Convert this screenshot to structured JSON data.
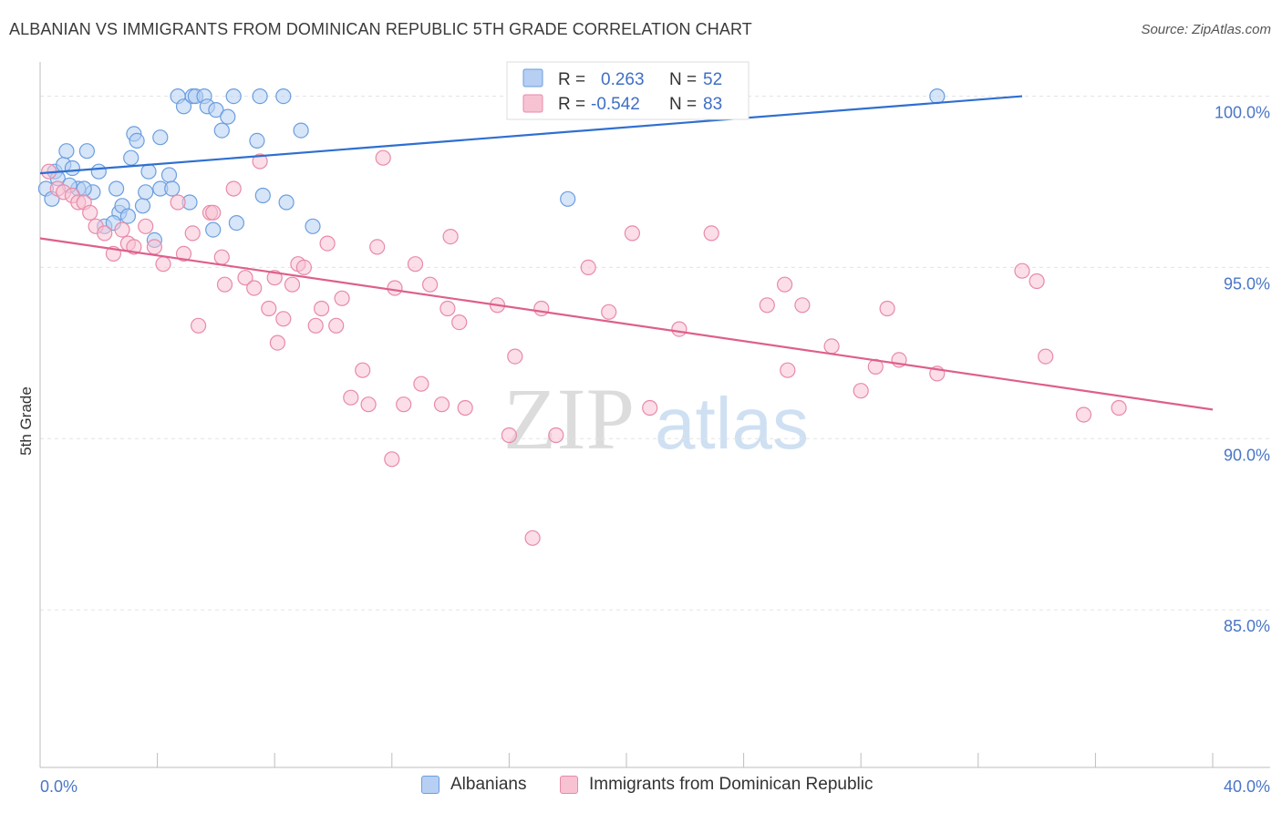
{
  "header": {
    "title": "ALBANIAN VS IMMIGRANTS FROM DOMINICAN REPUBLIC 5TH GRADE CORRELATION CHART",
    "source": "Source: ZipAtlas.com"
  },
  "watermark": {
    "zip": "ZIP",
    "atlas": "atlas"
  },
  "legend_top": {
    "rows": [
      {
        "r_label": "R =",
        "r_value": "0.263",
        "n_label": "N =",
        "n_value": "52"
      },
      {
        "r_label": "R =",
        "r_value": "-0.542",
        "n_label": "N =",
        "n_value": "83"
      }
    ]
  },
  "chart_data": {
    "type": "scatter",
    "ylabel": "5th Grade",
    "xlim": [
      0,
      40
    ],
    "ylim": [
      80.4,
      101.0
    ],
    "x_tick_labels": [
      "0.0%",
      "40.0%"
    ],
    "y_ticks": [
      {
        "value": 100,
        "label": "100.0%"
      },
      {
        "value": 95,
        "label": "95.0%"
      },
      {
        "value": 90,
        "label": "90.0%"
      },
      {
        "value": 85,
        "label": "85.0%"
      }
    ],
    "grid": "horizontal dashed",
    "series": [
      {
        "name": "Albanians",
        "color": "#6a9ee0",
        "fill": "#b7cff2",
        "trend": {
          "x0": 0,
          "y0": 97.75,
          "x1": 33.5,
          "y1": 100.0,
          "color": "#2f6fd0"
        },
        "points": [
          [
            0.2,
            97.3
          ],
          [
            0.5,
            97.8
          ],
          [
            0.8,
            98.0
          ],
          [
            0.9,
            98.4
          ],
          [
            1.1,
            97.9
          ],
          [
            1.3,
            97.3
          ],
          [
            1.6,
            98.4
          ],
          [
            1.8,
            97.2
          ],
          [
            2.0,
            97.8
          ],
          [
            2.2,
            96.2
          ],
          [
            2.6,
            97.3
          ],
          [
            2.7,
            96.6
          ],
          [
            2.8,
            96.8
          ],
          [
            3.1,
            98.2
          ],
          [
            3.2,
            98.9
          ],
          [
            3.3,
            98.7
          ],
          [
            3.5,
            96.8
          ],
          [
            3.6,
            97.2
          ],
          [
            3.7,
            97.8
          ],
          [
            3.9,
            95.8
          ],
          [
            4.1,
            97.3
          ],
          [
            4.1,
            98.8
          ],
          [
            4.4,
            97.7
          ],
          [
            4.5,
            97.3
          ],
          [
            4.7,
            100.0
          ],
          [
            4.9,
            99.7
          ],
          [
            5.1,
            96.9
          ],
          [
            5.2,
            100.0
          ],
          [
            5.3,
            100.0
          ],
          [
            5.6,
            100.0
          ],
          [
            5.7,
            99.7
          ],
          [
            5.9,
            96.1
          ],
          [
            6.0,
            99.6
          ],
          [
            6.2,
            99.0
          ],
          [
            6.4,
            99.4
          ],
          [
            6.6,
            100.0
          ],
          [
            6.7,
            96.3
          ],
          [
            7.4,
            98.7
          ],
          [
            7.5,
            100.0
          ],
          [
            7.6,
            97.1
          ],
          [
            8.3,
            100.0
          ],
          [
            8.4,
            96.9
          ],
          [
            8.9,
            99.0
          ],
          [
            9.3,
            96.2
          ],
          [
            18.0,
            97.0
          ],
          [
            30.6,
            100.0
          ],
          [
            0.4,
            97.0
          ],
          [
            0.6,
            97.6
          ],
          [
            1.5,
            97.3
          ],
          [
            2.5,
            96.3
          ],
          [
            3.0,
            96.5
          ],
          [
            1.0,
            97.4
          ]
        ]
      },
      {
        "name": "Immigrants from Dominican Republic",
        "color": "#e88aa8",
        "fill": "#f7c3d3",
        "trend": {
          "x0": 0,
          "y0": 95.85,
          "x1": 40,
          "y1": 90.85,
          "color": "#de5f8c"
        },
        "points": [
          [
            0.3,
            97.8
          ],
          [
            0.6,
            97.3
          ],
          [
            0.8,
            97.2
          ],
          [
            1.1,
            97.1
          ],
          [
            1.3,
            96.9
          ],
          [
            1.5,
            96.9
          ],
          [
            1.7,
            96.6
          ],
          [
            1.9,
            96.2
          ],
          [
            2.2,
            96.0
          ],
          [
            2.5,
            95.4
          ],
          [
            2.8,
            96.1
          ],
          [
            3.0,
            95.7
          ],
          [
            3.2,
            95.6
          ],
          [
            3.6,
            96.2
          ],
          [
            3.9,
            95.6
          ],
          [
            4.2,
            95.1
          ],
          [
            4.7,
            96.9
          ],
          [
            4.9,
            95.4
          ],
          [
            5.2,
            96.0
          ],
          [
            5.4,
            93.3
          ],
          [
            5.8,
            96.6
          ],
          [
            5.9,
            96.6
          ],
          [
            6.2,
            95.3
          ],
          [
            6.3,
            94.5
          ],
          [
            6.6,
            97.3
          ],
          [
            7.0,
            94.7
          ],
          [
            7.3,
            94.4
          ],
          [
            7.5,
            98.1
          ],
          [
            7.8,
            93.8
          ],
          [
            8.0,
            94.7
          ],
          [
            8.1,
            92.8
          ],
          [
            8.3,
            93.5
          ],
          [
            8.6,
            94.5
          ],
          [
            8.8,
            95.1
          ],
          [
            9.0,
            95.0
          ],
          [
            9.4,
            93.3
          ],
          [
            9.6,
            93.8
          ],
          [
            9.8,
            95.7
          ],
          [
            10.1,
            93.3
          ],
          [
            10.3,
            94.1
          ],
          [
            10.6,
            91.2
          ],
          [
            11.0,
            92.0
          ],
          [
            11.2,
            91.0
          ],
          [
            11.5,
            95.6
          ],
          [
            11.7,
            98.2
          ],
          [
            12.0,
            89.4
          ],
          [
            12.1,
            94.4
          ],
          [
            12.4,
            91.0
          ],
          [
            12.8,
            95.1
          ],
          [
            13.0,
            91.6
          ],
          [
            13.3,
            94.5
          ],
          [
            13.7,
            91.0
          ],
          [
            13.9,
            93.8
          ],
          [
            14.0,
            95.9
          ],
          [
            14.3,
            93.4
          ],
          [
            14.5,
            90.9
          ],
          [
            15.6,
            93.9
          ],
          [
            16.0,
            90.1
          ],
          [
            16.2,
            92.4
          ],
          [
            16.8,
            87.1
          ],
          [
            17.1,
            93.8
          ],
          [
            17.6,
            90.1
          ],
          [
            18.7,
            95.0
          ],
          [
            19.4,
            93.7
          ],
          [
            20.2,
            96.0
          ],
          [
            20.8,
            90.9
          ],
          [
            21.8,
            93.2
          ],
          [
            22.9,
            96.0
          ],
          [
            24.8,
            93.9
          ],
          [
            25.4,
            94.5
          ],
          [
            25.5,
            92.0
          ],
          [
            26.0,
            93.9
          ],
          [
            27.0,
            92.7
          ],
          [
            28.0,
            91.4
          ],
          [
            28.5,
            92.1
          ],
          [
            28.9,
            93.8
          ],
          [
            29.3,
            92.3
          ],
          [
            30.6,
            91.9
          ],
          [
            33.5,
            94.9
          ],
          [
            34.0,
            94.6
          ],
          [
            34.3,
            92.4
          ],
          [
            35.6,
            90.7
          ],
          [
            36.8,
            90.9
          ]
        ]
      }
    ]
  },
  "bottom_legend": {
    "items": [
      "Albanians",
      "Immigrants from Dominican Republic"
    ]
  }
}
